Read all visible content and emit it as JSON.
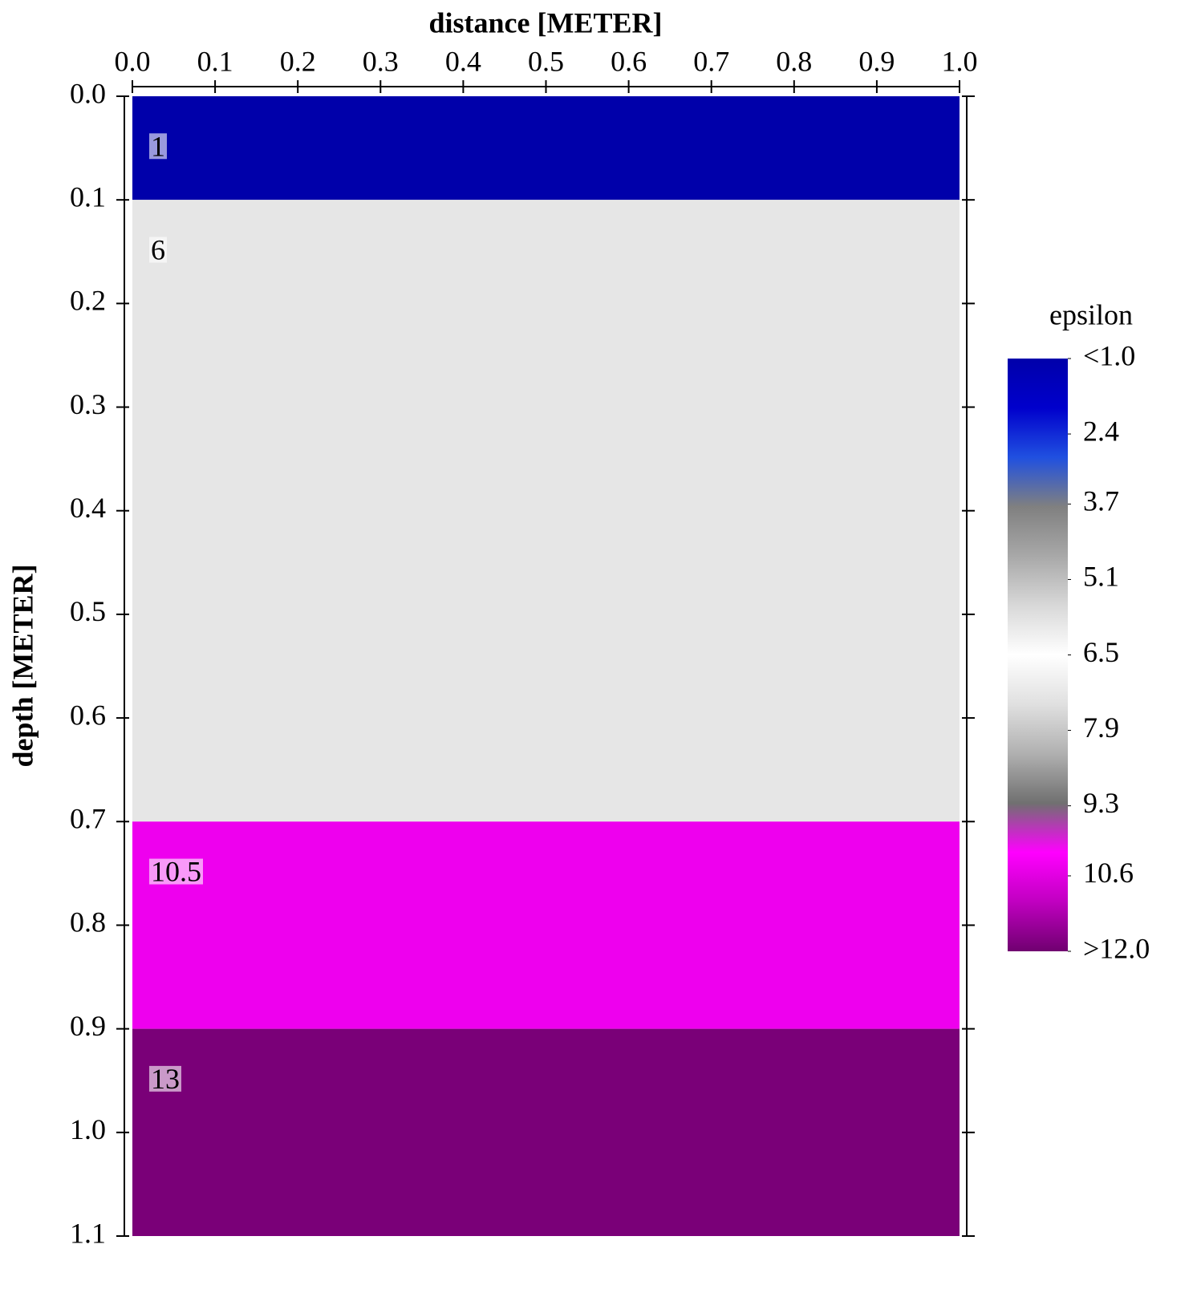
{
  "chart_data": {
    "type": "layers",
    "x_label": "distance [METER]",
    "y_label": "depth [METER]",
    "xlim": [
      0,
      1
    ],
    "xticks": [
      {
        "value": 0,
        "label": "0.0"
      },
      0.1,
      0.2,
      0.3,
      0.4,
      0.5,
      0.6,
      0.7,
      0.8,
      0.9,
      {
        "value": 1,
        "label": "1.0"
      }
    ],
    "ylim": [
      0,
      1.1
    ],
    "y_inverted": true,
    "yticks": [
      {
        "value": 0,
        "label": "0.0"
      },
      0.1,
      0.2,
      0.3,
      0.4,
      0.5,
      0.6,
      0.7,
      0.8,
      0.9,
      {
        "value": 1,
        "label": "1.0"
      },
      1.1
    ],
    "layers": [
      {
        "top": 0,
        "bottom": 0.1,
        "value": 1,
        "color": "#0000aa"
      },
      {
        "top": 0.1,
        "bottom": 0.7,
        "value": 6,
        "color": "#e6e6e6"
      },
      {
        "top": 0.7,
        "bottom": 0.9,
        "value": 10.5,
        "color": "#ee00ee"
      },
      {
        "top": 0.9,
        "bottom": 1.1,
        "value": 13,
        "color": "#7a0078"
      }
    ],
    "colorbar": {
      "label": "epsilon",
      "range": [
        1,
        12
      ],
      "ticks": [
        {
          "value": 1,
          "label": "<1.0"
        },
        2.4,
        3.7,
        5.1,
        6.5,
        7.9,
        9.3,
        10.6,
        {
          "value": 12,
          "label": ">12.0"
        }
      ],
      "colors": [
        "#0000aa",
        "#0000cc",
        "#2050e0",
        "#808080",
        "#a8a8a8",
        "#d8d8d8",
        "#ffffff",
        "#e0e0e0",
        "#b0b0b0",
        "#707070",
        "#ff00ff",
        "#c000c0",
        "#700070"
      ]
    }
  }
}
